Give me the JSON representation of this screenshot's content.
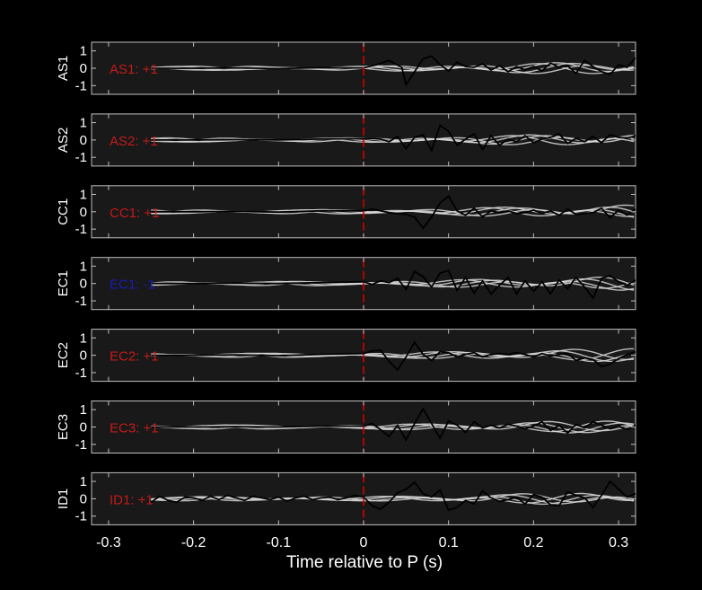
{
  "chart_data": {
    "type": "line",
    "xlabel": "Time relative to P (s)",
    "xlim": [
      -0.32,
      0.32
    ],
    "x_ticks": [
      -0.3,
      -0.2,
      -0.1,
      0,
      0.1,
      0.2,
      0.3
    ],
    "x_tick_labels": [
      "-0.3",
      "-0.2",
      "-0.1",
      "0",
      "0.1",
      "0.2",
      "0.3"
    ],
    "ylim": [
      -1.5,
      1.5
    ],
    "y_ticks": [
      1,
      0,
      -1
    ],
    "y_tick_labels": [
      "1",
      "0",
      "-1"
    ],
    "p_arrival_time": 0,
    "grid": false,
    "colors": {
      "background": "#000000",
      "panel": "#191919",
      "frame": "#bfbfbf",
      "text": "#ffffff",
      "marker": "#d40000",
      "positive_label": "#c41a1a",
      "negative_label": "#1a1ab4",
      "template_traces": "#d9d9d9",
      "observed_trace": "#000000"
    },
    "panels": [
      {
        "station": "AS1",
        "polarity_label": "AS1: +1",
        "polarity": 1,
        "observed_x": [
          -0.25,
          -0.2,
          -0.15,
          -0.1,
          -0.05,
          0,
          0.015,
          0.03,
          0.045,
          0.05,
          0.06,
          0.07,
          0.08,
          0.09,
          0.1,
          0.11,
          0.12,
          0.13,
          0.14,
          0.15,
          0.16,
          0.17,
          0.18,
          0.19,
          0.2,
          0.21,
          0.22,
          0.23,
          0.24,
          0.25,
          0.26,
          0.27,
          0.28,
          0.29,
          0.3,
          0.31,
          0.32
        ],
        "observed_y": [
          0,
          0,
          0.02,
          -0.02,
          0.03,
          0.02,
          0.2,
          0.45,
          0.05,
          -0.95,
          -0.2,
          0.55,
          0.7,
          0.2,
          -0.15,
          0.35,
          0.1,
          0.05,
          0.25,
          -0.1,
          0.15,
          -0.2,
          0.1,
          -0.1,
          0.1,
          -0.15,
          0.3,
          0.05,
          0.15,
          -0.3,
          0.45,
          0.1,
          -0.2,
          -0.35,
          0.2,
          0.05,
          0.6
        ]
      },
      {
        "station": "AS2",
        "polarity_label": "AS2: +1",
        "polarity": 1,
        "observed_x": [
          -0.25,
          -0.2,
          -0.15,
          -0.1,
          -0.05,
          0,
          0.01,
          0.02,
          0.03,
          0.04,
          0.05,
          0.06,
          0.07,
          0.08,
          0.09,
          0.1,
          0.11,
          0.12,
          0.13,
          0.14,
          0.15,
          0.16,
          0.17,
          0.18,
          0.19,
          0.2,
          0.21,
          0.22,
          0.23,
          0.24,
          0.25,
          0.26,
          0.27,
          0.28,
          0.29,
          0.3,
          0.31,
          0.32
        ],
        "observed_y": [
          0,
          0,
          0.02,
          0,
          0.05,
          0.08,
          0.1,
          0.05,
          -0.1,
          0.2,
          -0.5,
          0.15,
          0.3,
          -0.6,
          0.85,
          0.5,
          -0.3,
          0.05,
          0.35,
          -0.55,
          0.25,
          -0.3,
          0.05,
          -0.1,
          0.25,
          -0.15,
          0.05,
          0.15,
          0.35,
          -0.2,
          0.1,
          -0.1,
          0.2,
          -0.15,
          0.3,
          0.15,
          0.1,
          0.25
        ]
      },
      {
        "station": "CC1",
        "polarity_label": "CC1: +1",
        "polarity": 1,
        "observed_x": [
          -0.25,
          -0.2,
          -0.15,
          -0.1,
          -0.05,
          0,
          0.01,
          0.02,
          0.03,
          0.04,
          0.05,
          0.06,
          0.07,
          0.08,
          0.09,
          0.1,
          0.11,
          0.12,
          0.13,
          0.14,
          0.15,
          0.16,
          0.17,
          0.18,
          0.19,
          0.2,
          0.21,
          0.22,
          0.23,
          0.24,
          0.25,
          0.26,
          0.27,
          0.28,
          0.29,
          0.3,
          0.31,
          0.32
        ],
        "observed_y": [
          0,
          0,
          0.02,
          -0.02,
          0.05,
          0.05,
          0.15,
          0.05,
          -0.05,
          -0.1,
          -0.15,
          -0.3,
          -0.95,
          -0.3,
          0.5,
          0.9,
          0.05,
          -0.2,
          0.2,
          -0.3,
          0.05,
          -0.05,
          0.05,
          -0.1,
          -0.05,
          0.1,
          -0.1,
          0.05,
          -0.2,
          0.15,
          -0.15,
          -0.1,
          -0.05,
          0.2,
          -0.35,
          0.1,
          -0.2,
          0.15
        ]
      },
      {
        "station": "EC1",
        "polarity_label": "EC1: -1",
        "polarity": -1,
        "observed_x": [
          -0.25,
          -0.2,
          -0.15,
          -0.1,
          -0.05,
          0,
          0.01,
          0.02,
          0.03,
          0.04,
          0.05,
          0.06,
          0.07,
          0.08,
          0.09,
          0.1,
          0.11,
          0.12,
          0.13,
          0.14,
          0.15,
          0.16,
          0.17,
          0.18,
          0.19,
          0.2,
          0.21,
          0.22,
          0.23,
          0.24,
          0.25,
          0.26,
          0.27,
          0.28,
          0.29,
          0.3,
          0.31,
          0.32
        ],
        "observed_y": [
          0,
          0,
          0.02,
          0,
          0.05,
          0.1,
          -0.05,
          0.15,
          0.05,
          0.3,
          -0.35,
          0.7,
          0.4,
          -0.2,
          0.6,
          0.75,
          -0.4,
          0.35,
          -0.55,
          0.15,
          -0.6,
          -0.1,
          0.35,
          -0.6,
          0.15,
          -0.45,
          0.1,
          -0.6,
          0.2,
          -0.3,
          0.35,
          -0.2,
          -0.85,
          0.3,
          0.45,
          0.1,
          -0.1,
          0.2
        ]
      },
      {
        "station": "EC2",
        "polarity_label": "EC2: +1",
        "polarity": 1,
        "observed_x": [
          -0.25,
          -0.2,
          -0.15,
          -0.1,
          -0.05,
          0,
          0.01,
          0.02,
          0.03,
          0.04,
          0.05,
          0.06,
          0.07,
          0.08,
          0.09,
          0.1,
          0.11,
          0.12,
          0.13,
          0.14,
          0.15,
          0.16,
          0.17,
          0.18,
          0.19,
          0.2,
          0.21,
          0.22,
          0.23,
          0.24,
          0.25,
          0.26,
          0.27,
          0.28,
          0.29,
          0.3,
          0.31,
          0.32
        ],
        "observed_y": [
          0,
          0,
          0.02,
          -0.02,
          0.05,
          0.1,
          0.25,
          0.3,
          -0.35,
          -0.85,
          -0.1,
          0.75,
          0.05,
          -0.3,
          0.2,
          0.15,
          -0.1,
          0.05,
          0.15,
          -0.1,
          0.05,
          0.1,
          0.05,
          0.15,
          0.05,
          -0.1,
          0.1,
          -0.05,
          0.05,
          0.1,
          -0.3,
          -0.15,
          -0.25,
          -0.65,
          -0.5,
          -0.2,
          0.05,
          0.2
        ]
      },
      {
        "station": "EC3",
        "polarity_label": "EC3: +1",
        "polarity": 1,
        "observed_x": [
          -0.25,
          -0.2,
          -0.15,
          -0.1,
          -0.05,
          0,
          0.01,
          0.02,
          0.03,
          0.04,
          0.05,
          0.06,
          0.07,
          0.08,
          0.09,
          0.1,
          0.11,
          0.12,
          0.13,
          0.14,
          0.15,
          0.16,
          0.17,
          0.18,
          0.19,
          0.2,
          0.21,
          0.22,
          0.23,
          0.24,
          0.25,
          0.26,
          0.27,
          0.28,
          0.29,
          0.3,
          0.31,
          0.32
        ],
        "observed_y": [
          0,
          0,
          0.02,
          0,
          0.05,
          0.05,
          0.2,
          -0.15,
          -0.55,
          0.1,
          -0.75,
          0.2,
          1.05,
          0.2,
          -0.65,
          0.35,
          0.1,
          -0.3,
          0.3,
          -0.05,
          0.1,
          -0.05,
          0.15,
          0.05,
          -0.1,
          0.05,
          0.3,
          -0.2,
          0.1,
          -0.35,
          0.15,
          -0.05,
          0.3,
          0.1,
          -0.1,
          0.05,
          -0.15,
          0.1
        ]
      },
      {
        "station": "ID1",
        "polarity_label": "ID1: +1",
        "polarity": 1,
        "observed_x": [
          -0.25,
          -0.24,
          -0.23,
          -0.22,
          -0.21,
          -0.2,
          -0.19,
          -0.18,
          -0.17,
          -0.16,
          -0.15,
          -0.14,
          -0.13,
          -0.12,
          -0.11,
          -0.1,
          -0.09,
          -0.08,
          -0.07,
          -0.06,
          -0.05,
          -0.04,
          -0.03,
          -0.02,
          -0.01,
          0,
          0.01,
          0.02,
          0.03,
          0.04,
          0.05,
          0.06,
          0.07,
          0.08,
          0.09,
          0.1,
          0.11,
          0.12,
          0.13,
          0.14,
          0.15,
          0.16,
          0.17,
          0.18,
          0.19,
          0.2,
          0.21,
          0.22,
          0.23,
          0.24,
          0.25,
          0.26,
          0.27,
          0.28,
          0.29,
          0.3,
          0.31,
          0.32
        ],
        "observed_y": [
          -0.2,
          0.15,
          -0.1,
          -0.2,
          0.1,
          0.05,
          -0.1,
          0.15,
          -0.05,
          0.2,
          0.05,
          -0.1,
          0.15,
          0.05,
          -0.05,
          0.1,
          -0.15,
          0.05,
          0.15,
          -0.05,
          0.05,
          0.1,
          -0.05,
          0.05,
          0.2,
          0.1,
          -0.4,
          -0.6,
          -0.2,
          0.35,
          0.55,
          0.95,
          0.3,
          0.1,
          0.5,
          -0.65,
          -0.5,
          -0.1,
          -0.3,
          0.45,
          0.05,
          -0.15,
          -0.05,
          0.1,
          -0.3,
          0.25,
          0.1,
          -0.35,
          -0.4,
          0.4,
          0.2,
          0.05,
          -0.5,
          0.2,
          1.0,
          0.55,
          0.1,
          0.3
        ]
      }
    ]
  }
}
